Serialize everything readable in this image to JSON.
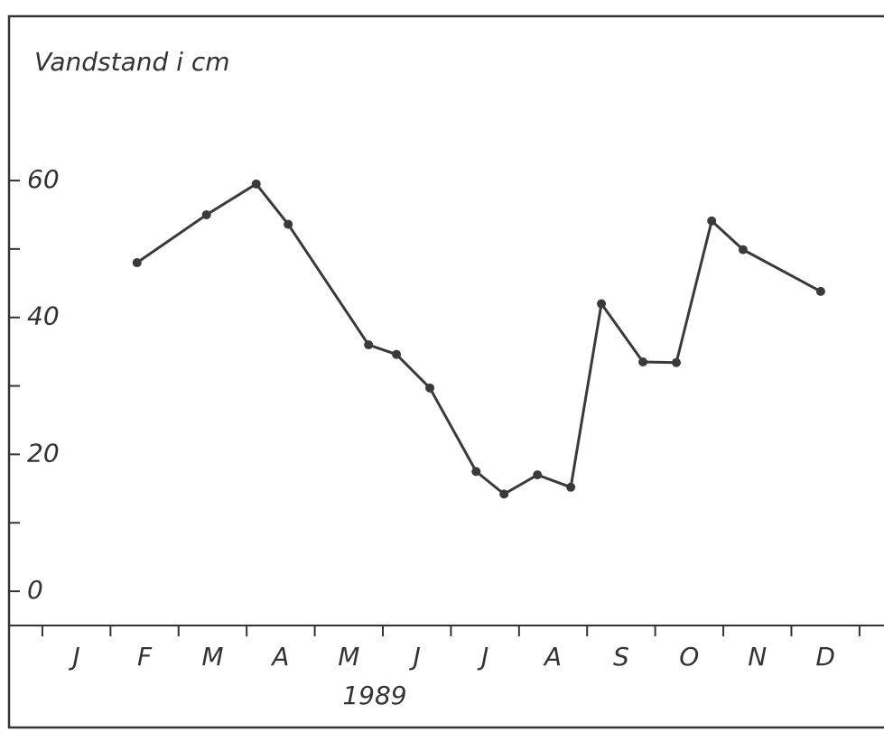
{
  "chart_data": {
    "type": "line",
    "title": "Vandstand i cm",
    "x_label": "1989",
    "categories": [
      "J",
      "F",
      "M",
      "A",
      "M",
      "J",
      "J",
      "A",
      "S",
      "O",
      "N",
      "D"
    ],
    "x": [
      1.39,
      2.41,
      3.14,
      3.61,
      4.79,
      5.2,
      5.69,
      6.37,
      6.78,
      7.27,
      7.76,
      8.21,
      8.82,
      9.31,
      9.83,
      10.29,
      11.43
    ],
    "values": [
      48,
      55,
      59.5,
      53.6,
      36,
      34.6,
      29.7,
      17.5,
      14.2,
      17,
      15.2,
      42,
      33.5,
      33.4,
      54.1,
      49.9,
      43.8
    ],
    "color": "#3a3a3a",
    "xlim": [
      -0.49,
      12.36
    ],
    "xticks": [
      0,
      1,
      2,
      3,
      4,
      5,
      6,
      7,
      8,
      9,
      10,
      11,
      12
    ],
    "ylim": [
      -5,
      84
    ],
    "yticks": [
      0,
      20,
      40,
      60
    ],
    "yminor": [
      10,
      30,
      50
    ],
    "markers": true
  }
}
